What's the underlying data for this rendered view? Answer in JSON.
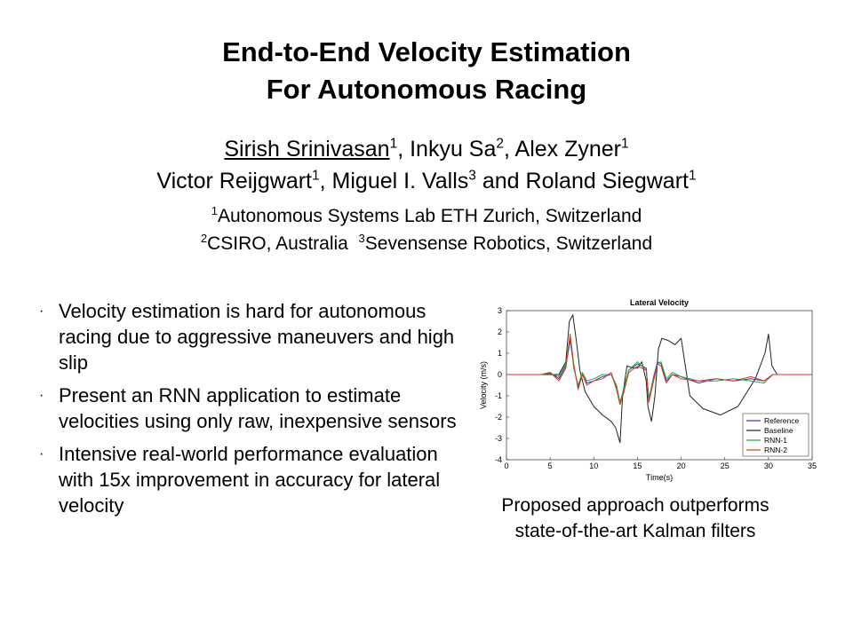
{
  "title": {
    "line1": "End-to-End Velocity Estimation",
    "line2": "For Autonomous Racing"
  },
  "authors": {
    "a1": {
      "name": "Sirish Srinivasan",
      "sup": "1"
    },
    "a2": {
      "name": "Inkyu Sa",
      "sup": "2"
    },
    "a3": {
      "name": "Alex Zyner",
      "sup": "1"
    },
    "a4": {
      "name": "Victor Reijgwart",
      "sup": "1"
    },
    "a5": {
      "name": "Miguel I. Valls",
      "sup": "3"
    },
    "conj": "and",
    "a6": {
      "name": "Roland Siegwart",
      "sup": "1"
    }
  },
  "affiliations": {
    "a1": {
      "sup": "1",
      "text": "Autonomous Systems Lab ETH Zurich, Switzerland"
    },
    "a2": {
      "sup": "2",
      "text": "CSIRO, Australia"
    },
    "a3": {
      "sup": "3",
      "text": "Sevensense Robotics, Switzerland"
    }
  },
  "bullets": [
    {
      "marker": "·",
      "text": "Velocity estimation is hard for autonomous racing due to aggressive maneuvers and high slip"
    },
    {
      "marker": "·",
      "text": "Present an RNN application to estimate velocities using only raw, inexpensive sensors"
    },
    {
      "marker": "·",
      "text": "Intensive real-world performance evaluation with 15x improvement in accuracy for lateral velocity"
    }
  ],
  "caption": "Proposed approach outperforms state-of-the-art Kalman filters",
  "chart_data": {
    "type": "line",
    "title": "Lateral Velocity",
    "xlabel": "Time(s)",
    "ylabel": "Velocity (m/s)",
    "xlim": [
      0,
      35
    ],
    "ylim": [
      -4,
      3
    ],
    "xticks": [
      0,
      5,
      10,
      15,
      20,
      25,
      30,
      35
    ],
    "yticks": [
      -4,
      -3,
      -2,
      -1,
      0,
      1,
      2,
      3
    ],
    "legend_position": "bottom-right",
    "series": [
      {
        "name": "Reference",
        "color": "#3333cc",
        "x": [
          0,
          4,
          5,
          6,
          6.8,
          7.3,
          7.7,
          8.2,
          8.7,
          9.2,
          10,
          11,
          12,
          12.6,
          13,
          13.4,
          14,
          15,
          16,
          16.3,
          16.8,
          17.3,
          17.7,
          18.3,
          19,
          20,
          22,
          24,
          26,
          28,
          29.5,
          30.5,
          32,
          35
        ],
        "y": [
          0,
          0,
          0.1,
          -0.2,
          0.4,
          1.6,
          0.4,
          -0.6,
          0.0,
          -0.4,
          -0.3,
          -0.1,
          0.0,
          -0.6,
          -1.4,
          -0.8,
          0.2,
          0.5,
          0.3,
          -1.2,
          -0.2,
          0.6,
          0.5,
          -0.3,
          0.0,
          -0.1,
          -0.4,
          -0.2,
          -0.3,
          -0.2,
          -0.3,
          0.0,
          0.0,
          0.0
        ]
      },
      {
        "name": "Baseline",
        "color": "#222222",
        "x": [
          0,
          4,
          5,
          6,
          6.8,
          7.2,
          7.6,
          8.0,
          8.4,
          9,
          10,
          11,
          12,
          12.5,
          13.0,
          13.3,
          13.8,
          14.5,
          15,
          15.5,
          16,
          16.2,
          16.6,
          17,
          17.4,
          17.8,
          18.5,
          19.3,
          20,
          21,
          22.5,
          24.5,
          26.5,
          28.5,
          29.6,
          30.0,
          30.4,
          31,
          35
        ],
        "y": [
          0,
          0,
          0,
          0,
          0.6,
          2.5,
          2.8,
          1.6,
          0.2,
          -0.8,
          -1.5,
          -1.9,
          -2.2,
          -2.5,
          -3.2,
          -1.0,
          0.4,
          0.3,
          0.3,
          0.6,
          -0.3,
          -1.5,
          -2.2,
          -1.0,
          1.2,
          1.7,
          1.6,
          1.4,
          1.7,
          -1.0,
          -1.6,
          -1.9,
          -1.5,
          -0.2,
          1.0,
          1.9,
          0.4,
          0.0,
          0.0
        ]
      },
      {
        "name": "RNN-1",
        "color": "#22aa33",
        "x": [
          0,
          4,
          5,
          6,
          6.8,
          7.3,
          7.7,
          8.2,
          8.7,
          9.2,
          10,
          11,
          12,
          12.6,
          13,
          13.4,
          14,
          15,
          16,
          16.3,
          16.8,
          17.3,
          17.7,
          18.3,
          19,
          20,
          22,
          24,
          26,
          28,
          29.5,
          30.5,
          32,
          35
        ],
        "y": [
          0,
          0,
          0.05,
          -0.1,
          0.5,
          1.8,
          0.3,
          -0.5,
          0.1,
          -0.3,
          -0.2,
          0.0,
          0.0,
          -0.5,
          -1.3,
          -0.7,
          0.2,
          0.6,
          0.2,
          -1.1,
          -0.3,
          0.5,
          0.6,
          -0.2,
          0.1,
          -0.1,
          -0.3,
          -0.3,
          -0.2,
          -0.3,
          -0.4,
          0.0,
          0.0,
          0.0
        ]
      },
      {
        "name": "RNN-2",
        "color": "#dd3322",
        "x": [
          0,
          4,
          5,
          6,
          6.8,
          7.3,
          7.7,
          8.2,
          8.7,
          9.2,
          10,
          11,
          12,
          12.6,
          13,
          13.4,
          14,
          15,
          16,
          16.3,
          16.8,
          17.3,
          17.7,
          18.3,
          19,
          20,
          22,
          24,
          26,
          28,
          29.5,
          30.5,
          32,
          35
        ],
        "y": [
          0,
          0,
          0.1,
          -0.3,
          0.3,
          1.9,
          0.5,
          -0.7,
          0.0,
          -0.5,
          -0.3,
          -0.2,
          0.1,
          -0.7,
          -1.4,
          -0.9,
          0.1,
          0.4,
          0.2,
          -1.3,
          -0.4,
          0.5,
          0.4,
          -0.4,
          0.0,
          -0.2,
          -0.3,
          -0.2,
          -0.3,
          -0.1,
          -0.3,
          0.0,
          0.0,
          0.0
        ]
      }
    ]
  }
}
